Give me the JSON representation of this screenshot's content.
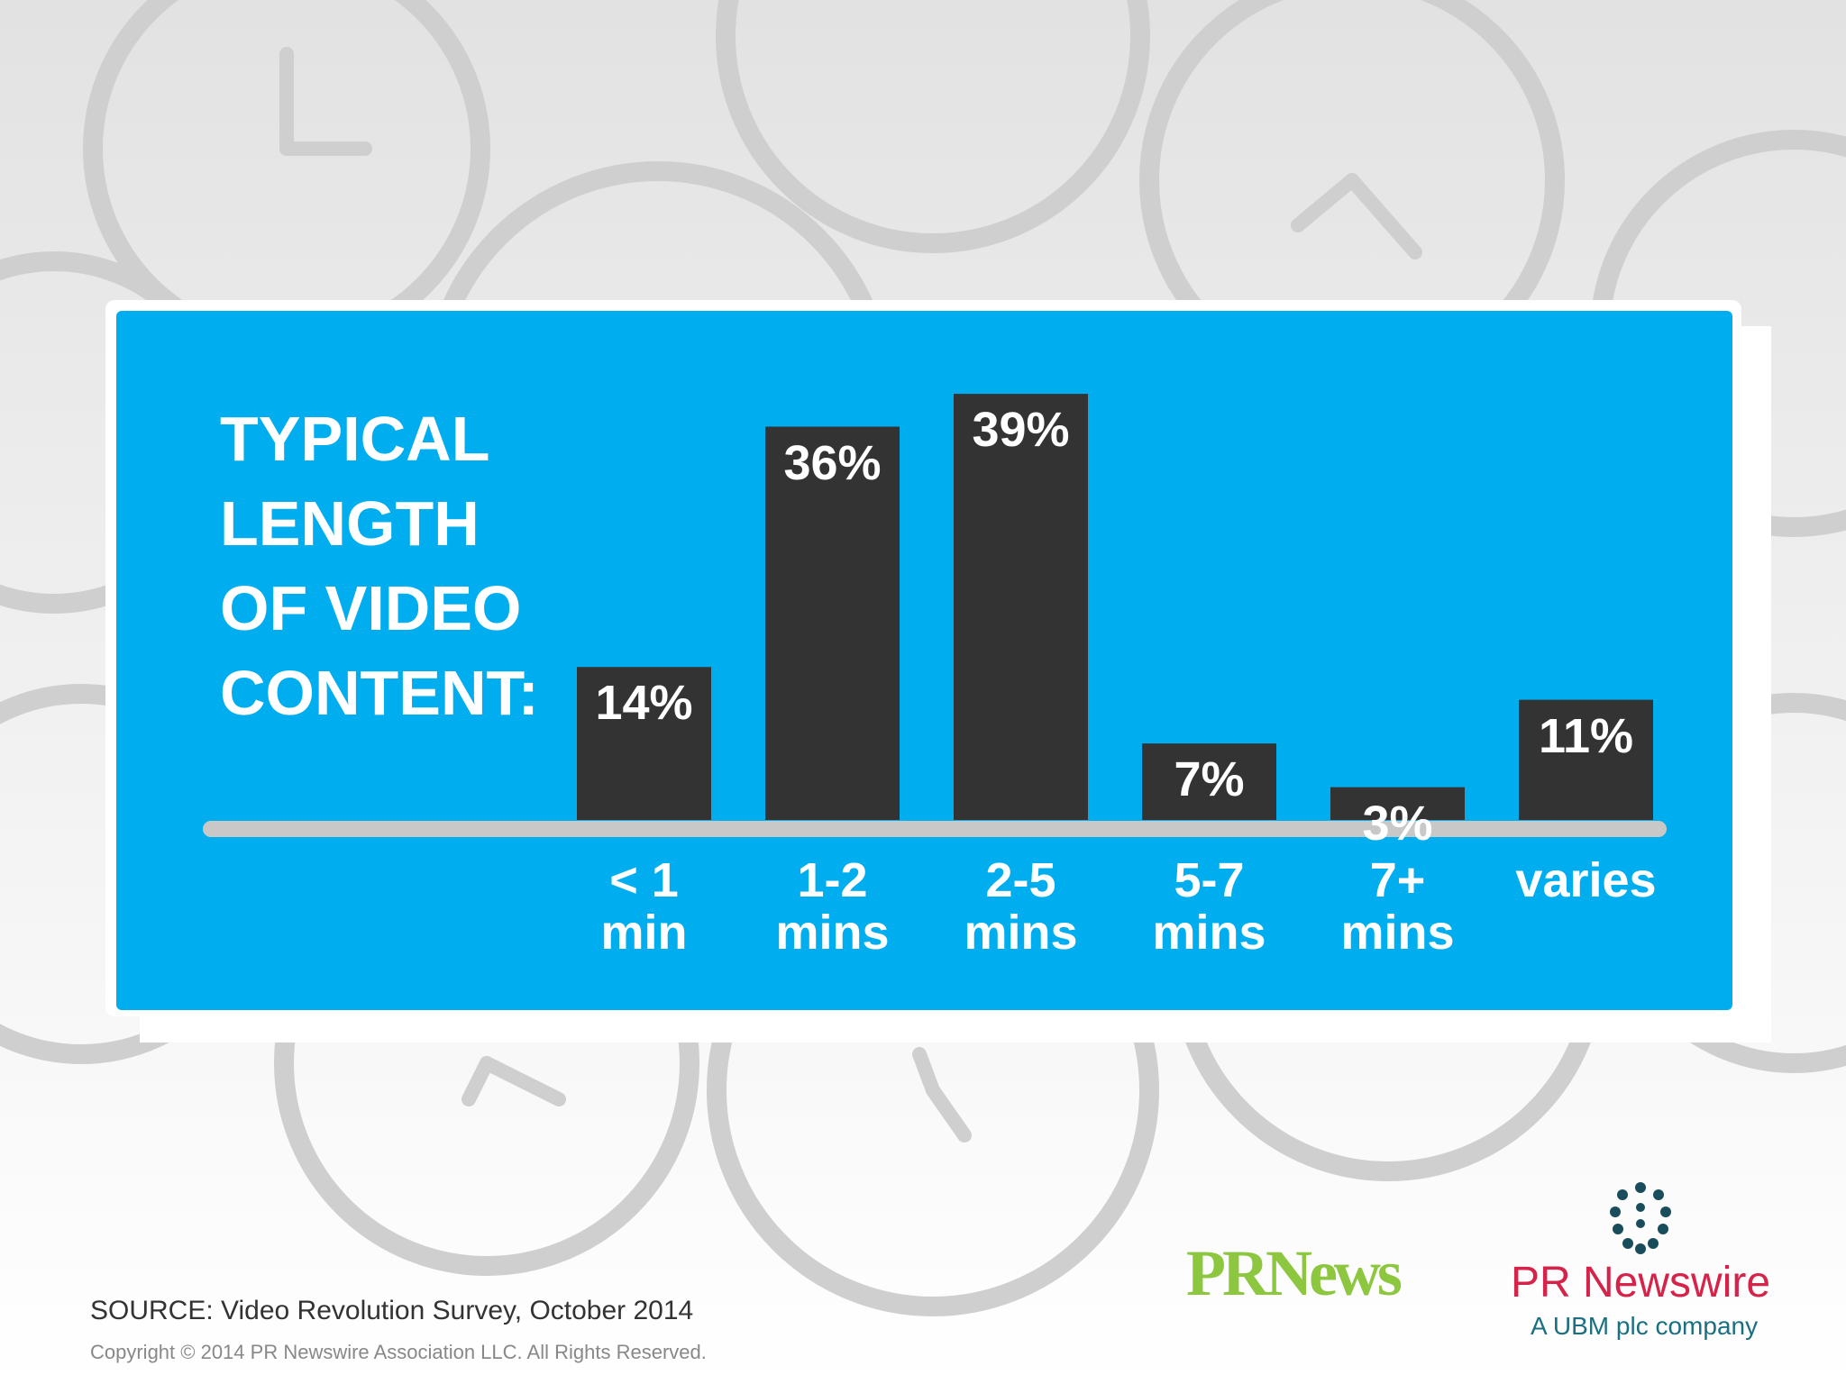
{
  "chart_data": {
    "type": "bar",
    "title": "TYPICAL LENGTH OF VIDEO CONTENT:",
    "categories": [
      "< 1 min",
      "1-2 mins",
      "2-5 mins",
      "5-7 mins",
      "7+ mins",
      "varies"
    ],
    "values": [
      14,
      36,
      39,
      7,
      3,
      11
    ],
    "value_labels": [
      "14%",
      "36%",
      "39%",
      "7%",
      "3%",
      "11%"
    ],
    "color": "#333333",
    "ylim": [
      0,
      40
    ]
  },
  "footer": {
    "source": "SOURCE: Video Revolution Survey, October 2014",
    "copyright": "Copyright © 2014 PR Newswire Association LLC. All Rights Reserved.",
    "logo_prnews": "PRNews",
    "logo_prnewswire": "PR Newswire",
    "logo_tagline": "A UBM plc company"
  }
}
